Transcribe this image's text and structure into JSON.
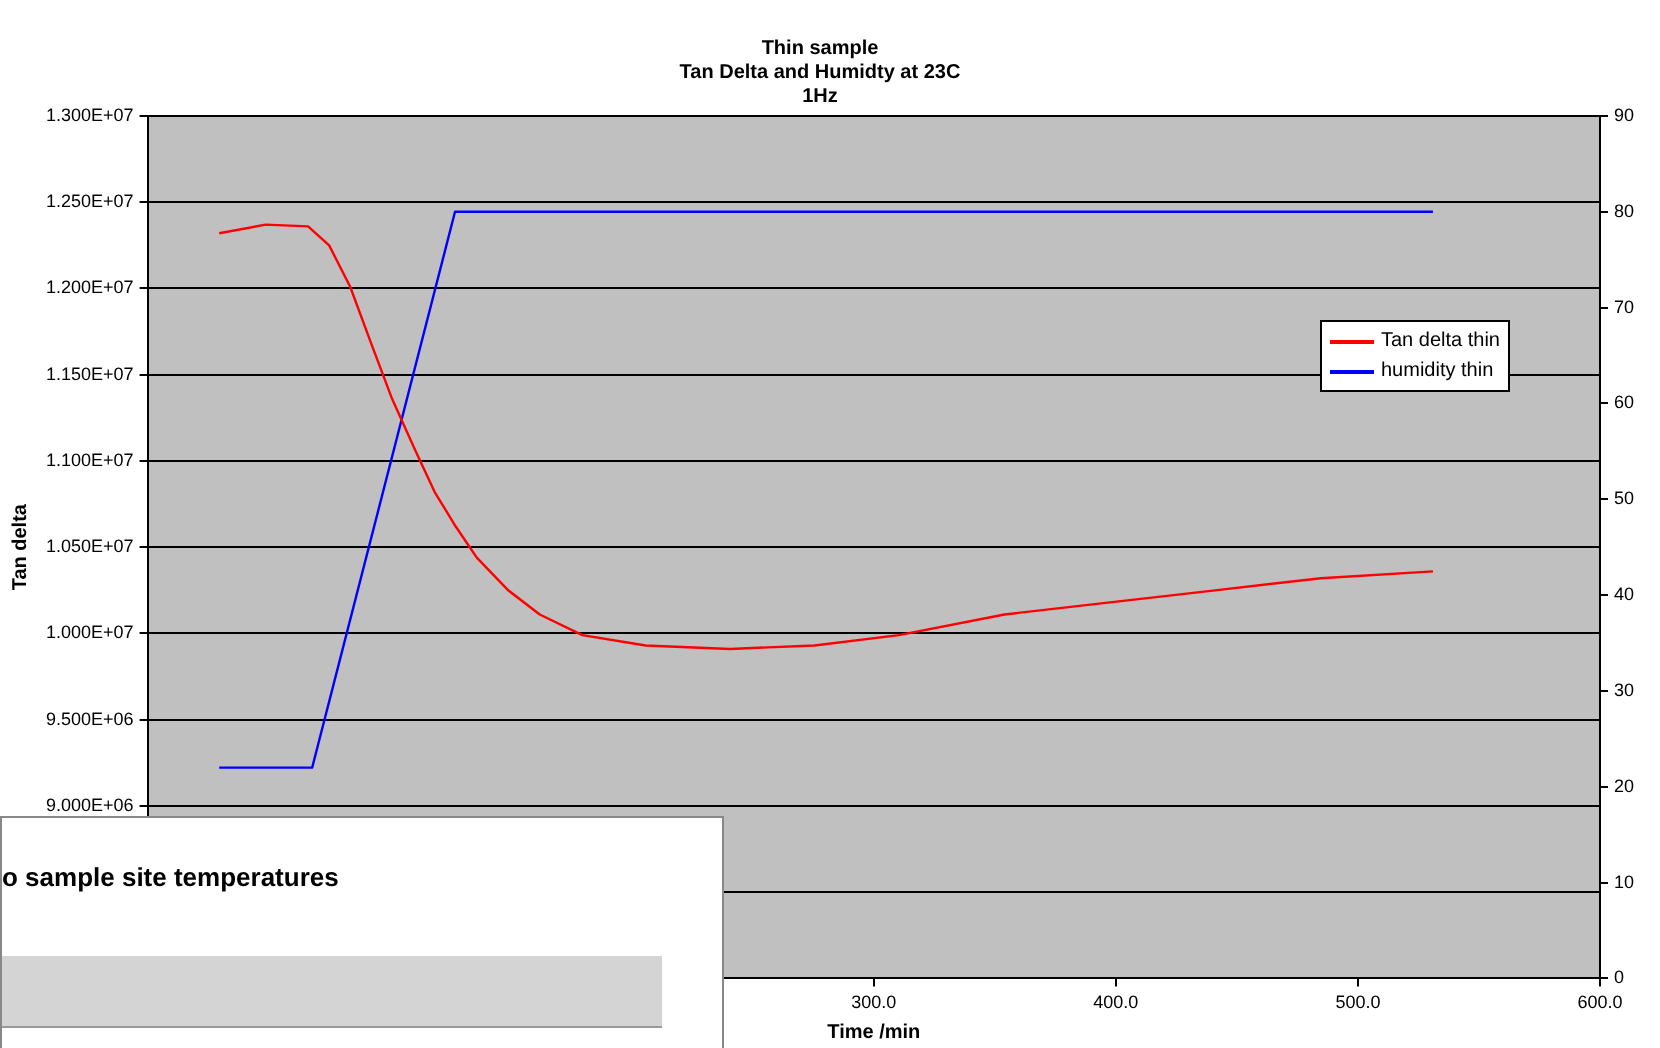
{
  "chart_data": {
    "type": "line",
    "title": "Thin sample\nTan Delta and Humidty at 23C\n1Hz",
    "xlabel": "Time /min",
    "ylabel": "Tan delta",
    "annotations": [
      "o sample site temperatures"
    ],
    "xlim": [
      0,
      600
    ],
    "xticks": [
      {
        "value": 0,
        "label": null
      },
      {
        "value": 100,
        "label": null
      },
      {
        "value": 200,
        "label": null
      },
      {
        "value": 300,
        "label": "300.0"
      },
      {
        "value": 400,
        "label": "400.0"
      },
      {
        "value": 500,
        "label": "500.0"
      },
      {
        "value": 600,
        "label": "600.0"
      }
    ],
    "ylim": [
      8000000,
      13000000
    ],
    "yticks": [
      {
        "value": 8000000,
        "label": null
      },
      {
        "value": 8500000,
        "label": null
      },
      {
        "value": 9000000,
        "label": "9.000E+06"
      },
      {
        "value": 9500000,
        "label": "9.500E+06"
      },
      {
        "value": 10000000,
        "label": "1.000E+07"
      },
      {
        "value": 10500000,
        "label": "1.050E+07"
      },
      {
        "value": 11000000,
        "label": "1.100E+07"
      },
      {
        "value": 11500000,
        "label": "1.150E+07"
      },
      {
        "value": 12000000,
        "label": "1.200E+07"
      },
      {
        "value": 12500000,
        "label": "1.250E+07"
      },
      {
        "value": 13000000,
        "label": "1.300E+07"
      }
    ],
    "y2lim": [
      0,
      90
    ],
    "y2ticks": [
      0,
      10,
      20,
      30,
      40,
      50,
      60,
      70,
      80,
      90
    ],
    "grid": "y",
    "legend": "top right",
    "marker": "none",
    "series": [
      {
        "name": "Tan delta thin",
        "color": "#ff0000",
        "x": [
          29.6,
          48.8,
          66.3,
          75,
          83.7,
          92.4,
          101,
          110,
          118.6,
          127.3,
          136,
          149,
          162,
          179.6,
          205.8,
          240.6,
          275.5,
          310.4,
          354,
          397.6,
          441,
          484.7,
          531
        ],
        "values": [
          12320000,
          12370000,
          12360000,
          12250000,
          12010000,
          11680000,
          11360000,
          11080000,
          10820000,
          10620000,
          10440000,
          10250000,
          10110000,
          9990000,
          9930000,
          9910000,
          9930000,
          9990000,
          10110000,
          10180000,
          10250000,
          10320000,
          10360000
        ]
      },
      {
        "name": "humidity thin",
        "color": "#0000ff",
        "axis": "y2",
        "x": [
          29.6,
          68,
          127,
          531
        ],
        "values": [
          22,
          22,
          80,
          80
        ]
      }
    ]
  }
}
